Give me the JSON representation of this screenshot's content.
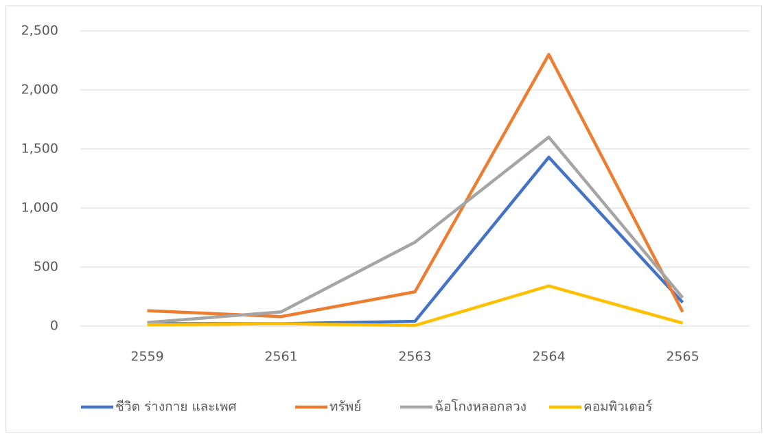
{
  "chart_data": {
    "type": "line",
    "categories": [
      "2559",
      "2561",
      "2563",
      "2564",
      "2565"
    ],
    "series": [
      {
        "name": "ชีวิต ร่างกาย และเพศ",
        "color": "#4472c4",
        "values": [
          20,
          20,
          40,
          1430,
          200
        ]
      },
      {
        "name": "ทรัพย์",
        "color": "#ed7d31",
        "values": [
          130,
          80,
          290,
          2300,
          120
        ]
      },
      {
        "name": "ฉ้อโกงหลอกลวง",
        "color": "#a5a5a5",
        "values": [
          30,
          120,
          710,
          1600,
          240
        ]
      },
      {
        "name": "คอมพิวเตอร์",
        "color": "#ffc000",
        "values": [
          10,
          20,
          5,
          340,
          25
        ]
      }
    ],
    "ylim": [
      0,
      2500
    ],
    "yticks": [
      0,
      500,
      {
        "value": 1000,
        "label": "1,000"
      },
      {
        "value": 1500,
        "label": "1,500"
      },
      {
        "value": 2000,
        "label": "2,000"
      },
      {
        "value": 2500,
        "label": "2,500"
      }
    ],
    "grid": true,
    "legend": "bottom"
  }
}
